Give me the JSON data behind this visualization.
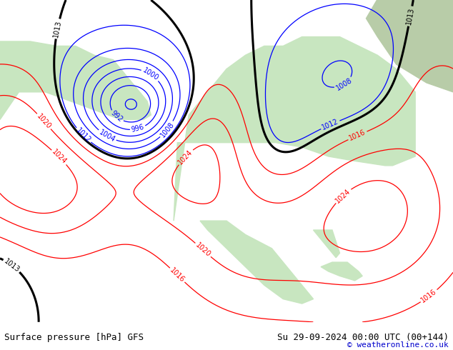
{
  "title_left": "Surface pressure [hPa] GFS",
  "title_right": "Su 29-09-2024 00:00 UTC (00+144)",
  "copyright": "© weatheronline.co.uk",
  "bg_color": "#d0e8f0",
  "land_color": "#c8e6c0",
  "fig_width": 6.34,
  "fig_height": 4.9,
  "dpi": 100,
  "bottom_bar_color": "#e8e8e8",
  "bottom_text_color": "#000000",
  "copyright_color": "#0000cc"
}
